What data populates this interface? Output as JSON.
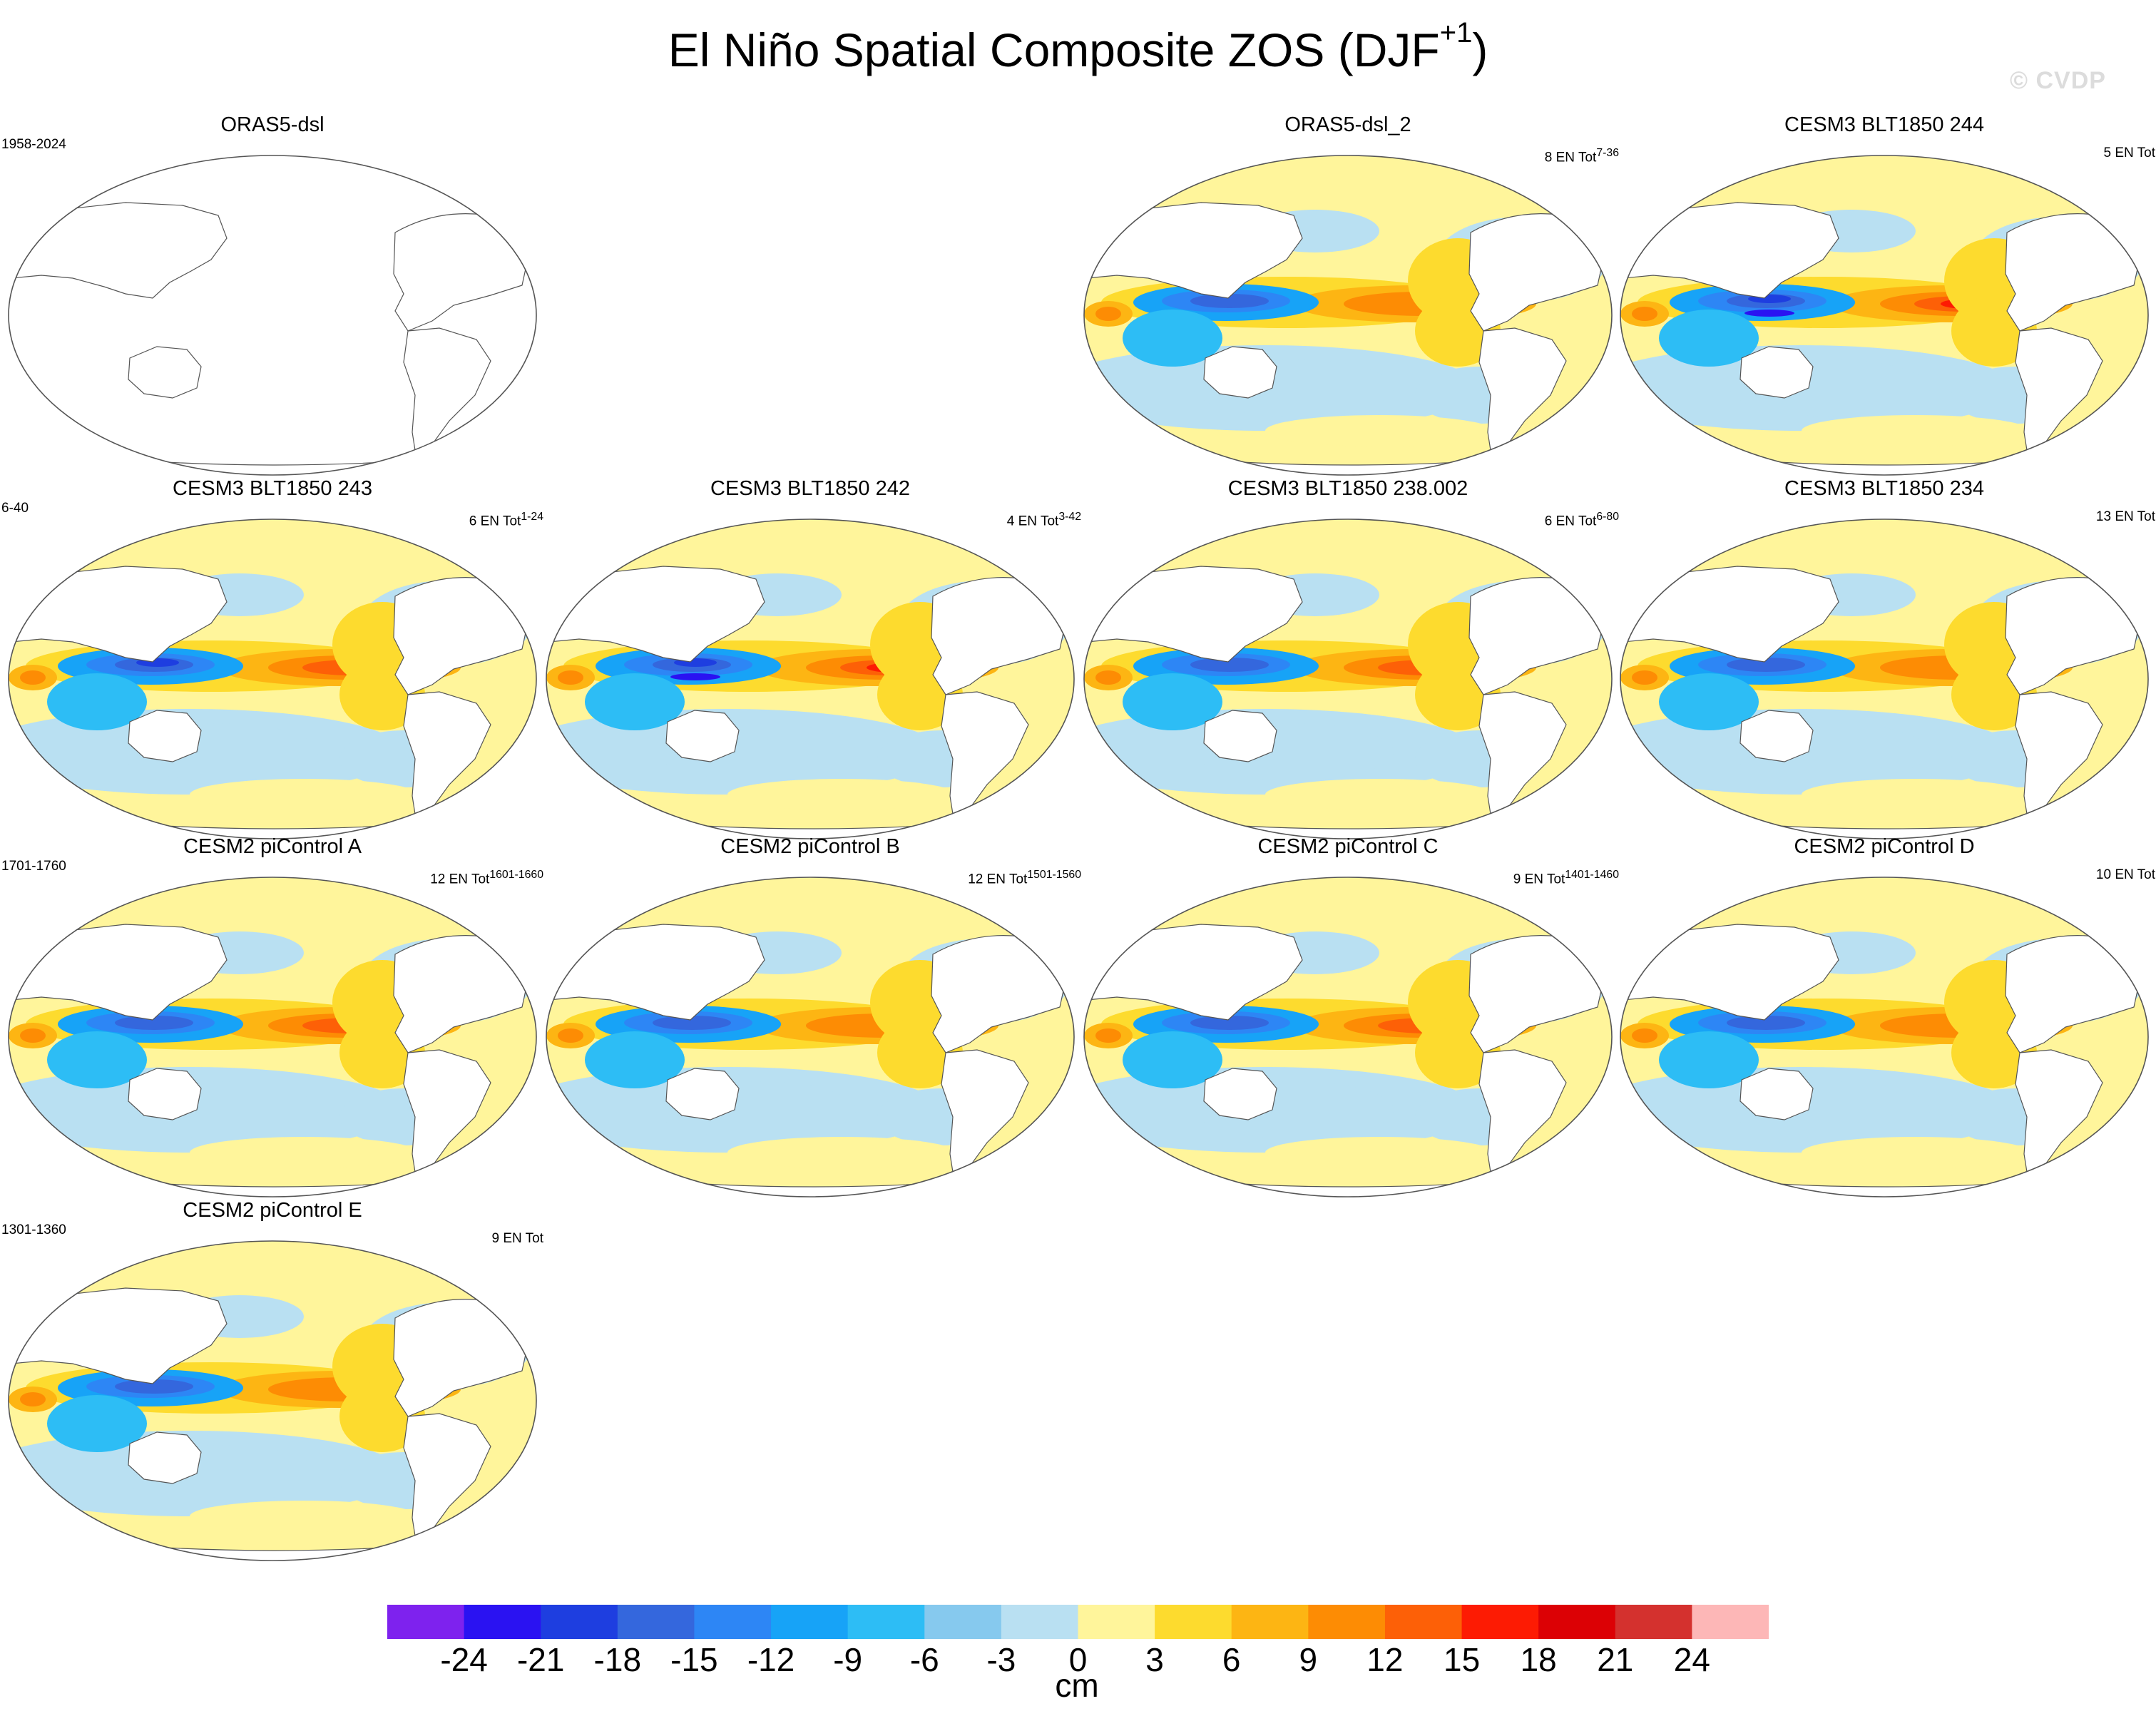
{
  "figure": {
    "title": "El Niño Spatial Composite ZOS (DJF",
    "title_superscript": "+1",
    "title_close": ")",
    "watermark": "© CVDP"
  },
  "panels": [
    {
      "id": "orasdsl",
      "title": "ORAS5-dsl",
      "left_label": "1958-2024",
      "right_label": "",
      "empty": true,
      "intensity": 0
    },
    {
      "id": "orasdsl2",
      "title": "ORAS5-dsl_2",
      "left_label": "",
      "right_label": "8 EN Tot",
      "superscript": "7-36",
      "empty": false,
      "intensity": 0.72
    },
    {
      "id": "c244",
      "title": "CESM3 BLT1850 244",
      "left_label": "",
      "right_label": "5 EN Tot",
      "superscript": "",
      "empty": false,
      "intensity": 1.0
    },
    {
      "id": "c243",
      "title": "CESM3 BLT1850 243",
      "left_label": "6-40",
      "right_label": "6 EN Tot",
      "superscript": "1-24",
      "empty": false,
      "intensity": 0.88
    },
    {
      "id": "c242",
      "title": "CESM3 BLT1850 242",
      "left_label": "",
      "right_label": "4 EN Tot",
      "superscript": "3-42",
      "empty": false,
      "intensity": 1.0
    },
    {
      "id": "c238",
      "title": "CESM3 BLT1850 238.002",
      "left_label": "",
      "right_label": "6 EN Tot",
      "superscript": "6-80",
      "empty": false,
      "intensity": 0.75
    },
    {
      "id": "c234",
      "title": "CESM3 BLT1850 234",
      "left_label": "",
      "right_label": "13 EN Tot",
      "superscript": "",
      "empty": false,
      "intensity": 0.7
    },
    {
      "id": "pa",
      "title": "CESM2 piControl A",
      "left_label": "1701-1760",
      "right_label": "12 EN Tot",
      "superscript": "1601-1660",
      "empty": false,
      "intensity": 0.78
    },
    {
      "id": "pb",
      "title": "CESM2 piControl B",
      "left_label": "",
      "right_label": "12 EN Tot",
      "superscript": "1501-1560",
      "empty": false,
      "intensity": 0.62
    },
    {
      "id": "pc",
      "title": "CESM2 piControl C",
      "left_label": "",
      "right_label": "9 EN Tot",
      "superscript": "1401-1460",
      "empty": false,
      "intensity": 0.8
    },
    {
      "id": "pd",
      "title": "CESM2 piControl D",
      "left_label": "",
      "right_label": "10 EN Tot",
      "superscript": "",
      "empty": false,
      "intensity": 0.7
    },
    {
      "id": "pe",
      "title": "CESM2 piControl E",
      "left_label": "1301-1360",
      "right_label": "9 EN Tot",
      "superscript": "",
      "empty": false,
      "intensity": 0.6
    }
  ],
  "colorbar": {
    "units": "cm",
    "labels": [
      "-24",
      "-21",
      "-18",
      "-15",
      "-12",
      "-9",
      "-6",
      "-3",
      "0",
      "3",
      "6",
      "9",
      "12",
      "15",
      "18",
      "21",
      "24"
    ],
    "colors": [
      "#7e22ee",
      "#2a12f2",
      "#1e3ee0",
      "#3467dd",
      "#2d86f5",
      "#17a3f7",
      "#2dbdf5",
      "#86c9ee",
      "#b9e0f2",
      "#fff59b",
      "#fddb2e",
      "#fdb513",
      "#fd8c04",
      "#fd6007",
      "#fd1b03",
      "#dc0105",
      "#d4312e",
      "#fdb7b7"
    ]
  }
}
